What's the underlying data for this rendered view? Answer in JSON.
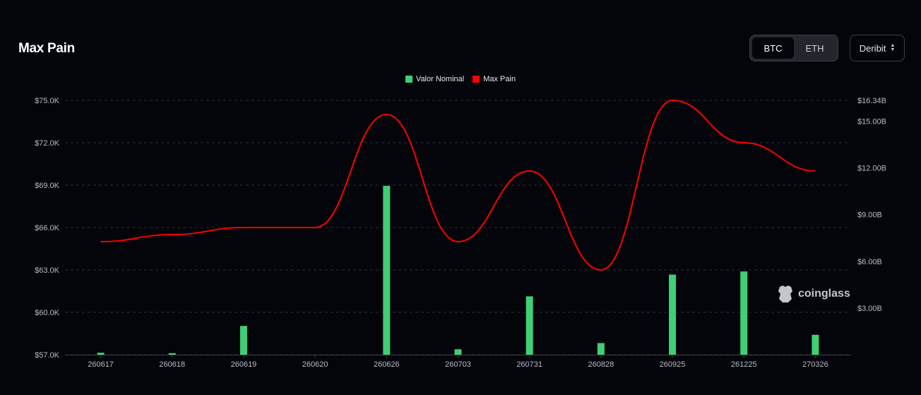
{
  "header": {
    "title": "Max Pain"
  },
  "asset_toggle": {
    "options": [
      "BTC",
      "ETH"
    ],
    "selected": "BTC"
  },
  "exchange_select": {
    "value": "Deribit"
  },
  "watermark": {
    "text": "coinglass"
  },
  "colors": {
    "bar": "#3fcf74",
    "line": "#ff0000",
    "background": "#03050a",
    "grid": "#2a2d35"
  },
  "chart_data": {
    "type": "bar+line",
    "categories": [
      "260617",
      "260618",
      "260619",
      "260620",
      "260626",
      "260703",
      "260731",
      "260828",
      "260925",
      "261225",
      "270326"
    ],
    "series": [
      {
        "name": "Valor Nominal",
        "type": "bar",
        "axis": "right",
        "values": [
          0.13,
          0.1,
          1.85,
          0,
          10.85,
          0.35,
          3.75,
          0.75,
          5.15,
          5.35,
          1.28
        ]
      },
      {
        "name": "Max Pain",
        "type": "line",
        "axis": "left",
        "values": [
          65000,
          65500,
          66000,
          66000,
          74000,
          65000,
          70000,
          63000,
          75000,
          72000,
          70000
        ]
      }
    ],
    "y_left": {
      "min": 57000,
      "max": 75000,
      "ticks": [
        "$57.0K",
        "$60.0K",
        "$63.0K",
        "$66.0K",
        "$69.0K",
        "$72.0K",
        "$75.0K"
      ]
    },
    "y_right": {
      "min": 0,
      "max": 16.34,
      "ticks": [
        "$3.00B",
        "$6.00B",
        "$9.00B",
        "$12.00B",
        "$15.00B",
        "$16.34B"
      ]
    },
    "legend_position": "top-center",
    "grid": true
  }
}
